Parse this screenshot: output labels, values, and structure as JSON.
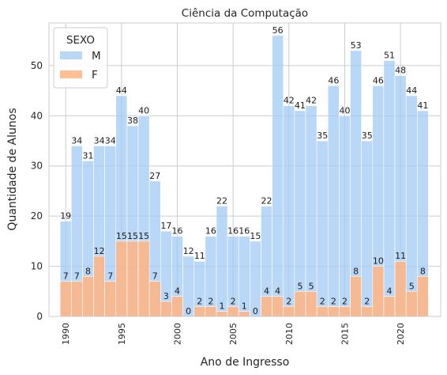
{
  "chart_data": {
    "type": "bar",
    "stacked": false,
    "title": "Ciência da Computação",
    "xlabel": "Ano de Ingresso",
    "ylabel": "Quantidade de Alunos",
    "x": [
      1990,
      1991,
      1992,
      1993,
      1994,
      1995,
      1996,
      1997,
      1998,
      1999,
      2000,
      2001,
      2002,
      2003,
      2004,
      2005,
      2006,
      2007,
      2008,
      2009,
      2010,
      2011,
      2012,
      2013,
      2014,
      2015,
      2016,
      2017,
      2018,
      2019,
      2020,
      2021,
      2022
    ],
    "xlim": [
      1988.5,
      2023.6
    ],
    "ylim": [
      0,
      58.5
    ],
    "xticks": [
      1990,
      1995,
      2000,
      2005,
      2010,
      2015,
      2020
    ],
    "xtick_labels": [
      "1990",
      "1995",
      "2000",
      "2005",
      "2010",
      "2015",
      "2020"
    ],
    "yticks": [
      0,
      10,
      20,
      30,
      40,
      50
    ],
    "ytick_labels": [
      "0",
      "10",
      "20",
      "30",
      "40",
      "50"
    ],
    "grid": true,
    "legend": {
      "title": "SEXO",
      "placement": "top-left"
    },
    "series": [
      {
        "name": "M",
        "color": "#a1c9f4",
        "values": [
          19,
          34,
          31,
          34,
          34,
          44,
          38,
          40,
          27,
          17,
          16,
          12,
          11,
          16,
          22,
          16,
          16,
          15,
          22,
          56,
          42,
          41,
          42,
          35,
          46,
          40,
          53,
          35,
          46,
          51,
          48,
          44,
          41
        ]
      },
      {
        "name": "F",
        "color": "#ffb482",
        "values": [
          7,
          7,
          8,
          12,
          7,
          15,
          15,
          15,
          7,
          3,
          4,
          0,
          2,
          2,
          1,
          2,
          1,
          0,
          4,
          4,
          2,
          5,
          5,
          2,
          2,
          2,
          8,
          2,
          10,
          4,
          11,
          5,
          8
        ]
      }
    ]
  }
}
